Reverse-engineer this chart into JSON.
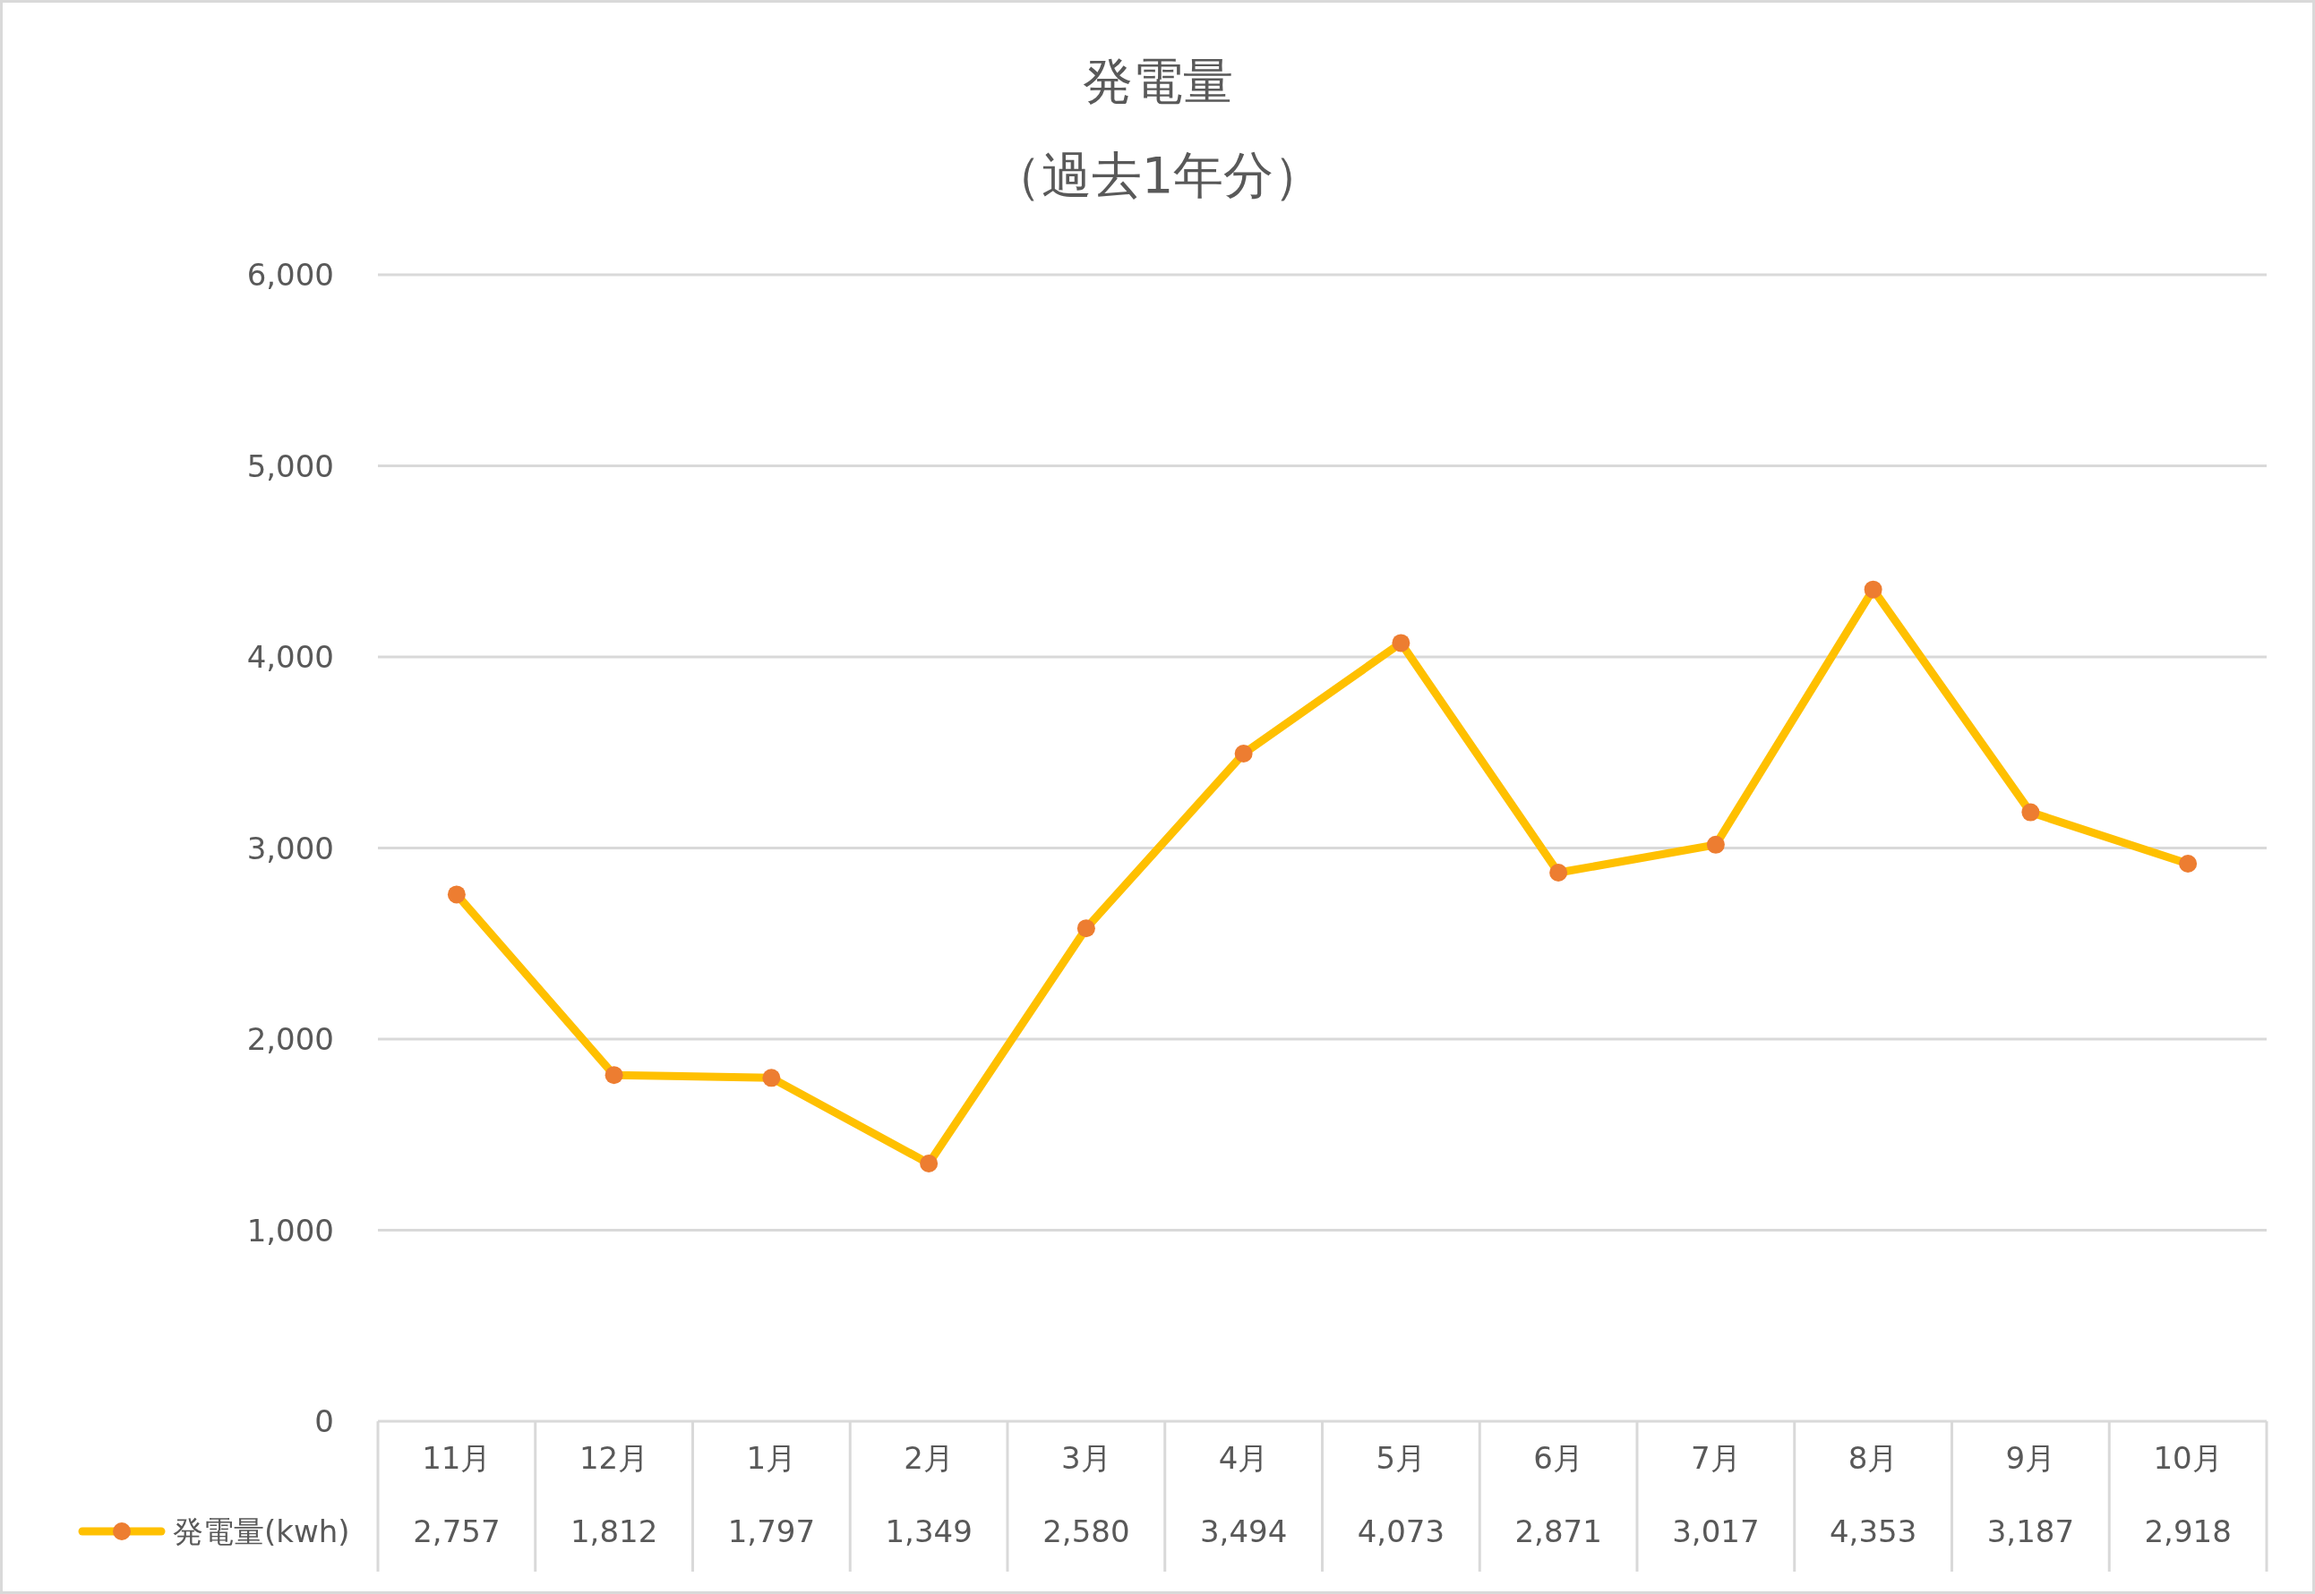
{
  "chart_data": {
    "type": "line",
    "title": "発電量",
    "subtitle": "（過去1年分）",
    "categories": [
      "11月",
      "12月",
      "1月",
      "2月",
      "3月",
      "4月",
      "5月",
      "6月",
      "7月",
      "8月",
      "9月",
      "10月"
    ],
    "series": [
      {
        "name": "発電量(kwh)",
        "color": "#ffc000",
        "colors": [
          "#ed7d31",
          "#ed7d31",
          "#ed7d31",
          "#ed7d31",
          "#ed7d31",
          "#ed7d31",
          "#ed7d31",
          "#ed7d31",
          "#ed7d31",
          "#ed7d31",
          "#ed7d31",
          "#ed7d31"
        ],
        "values": [
          2757,
          1812,
          1797,
          1349,
          2580,
          3494,
          4073,
          2871,
          3017,
          4353,
          3187,
          2918
        ],
        "value_labels": [
          "2,757",
          "1,812",
          "1,797",
          "1,349",
          "2,580",
          "3,494",
          "4,073",
          "2,871",
          "3,017",
          "4,353",
          "3,187",
          "2,918"
        ]
      }
    ],
    "ylim": [
      0,
      6000
    ],
    "yticks": [
      {
        "value": 0,
        "label": "0"
      },
      {
        "value": 1000,
        "label": "1,000"
      },
      {
        "value": 2000,
        "label": "2,000"
      },
      {
        "value": 3000,
        "label": "3,000"
      },
      {
        "value": 4000,
        "label": "4,000"
      },
      {
        "value": 5000,
        "label": "5,000"
      },
      {
        "value": 6000,
        "label": "6,000"
      }
    ],
    "grid": "y",
    "legend": "bottom left",
    "marker": "circle"
  }
}
